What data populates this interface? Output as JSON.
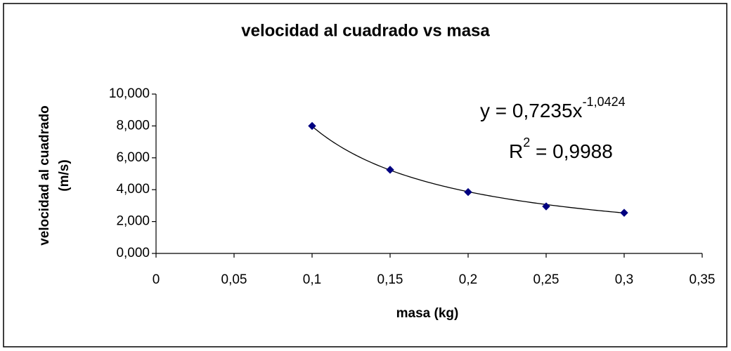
{
  "chart_data": {
    "type": "scatter",
    "title": "velocidad al cuadrado vs masa",
    "x_label": "masa (kg)",
    "y_label": [
      "velocidad al cuadrado",
      "(m/s)"
    ],
    "series": [
      {
        "name": "velocidad al cuadrado",
        "color": "#000080",
        "x": [
          0.1,
          0.15,
          0.2,
          0.25,
          0.3
        ],
        "values": [
          8.0,
          5.25,
          3.85,
          2.95,
          2.55
        ]
      }
    ],
    "xlim": [
      0,
      0.35
    ],
    "xticks": [
      0,
      {
        "value": 0.05,
        "label": "0,05"
      },
      {
        "value": 0.1,
        "label": "0,1"
      },
      {
        "value": 0.15,
        "label": "0,15"
      },
      {
        "value": 0.2,
        "label": "0,2"
      },
      {
        "value": 0.25,
        "label": "0,25"
      },
      {
        "value": 0.3,
        "label": "0,3"
      },
      {
        "value": 0.35,
        "label": "0,35"
      }
    ],
    "ylim": [
      0,
      10
    ],
    "yticks": [
      {
        "value": 0,
        "label": "0,000"
      },
      {
        "value": 2,
        "label": "2,000"
      },
      {
        "value": 4,
        "label": "4,000"
      },
      {
        "value": 6,
        "label": "6,000"
      },
      {
        "value": 8,
        "label": "8,000"
      },
      {
        "value": 10,
        "label": "10,000"
      }
    ],
    "trendline": {
      "type": "power",
      "a": 0.7235,
      "b": -1.0424,
      "equation": {
        "text": "y = 0,7235x",
        "exponent": "-1,0424"
      },
      "r_squared": {
        "text": "R",
        "exponent": "2",
        "rest": " = 0,9988"
      }
    }
  }
}
